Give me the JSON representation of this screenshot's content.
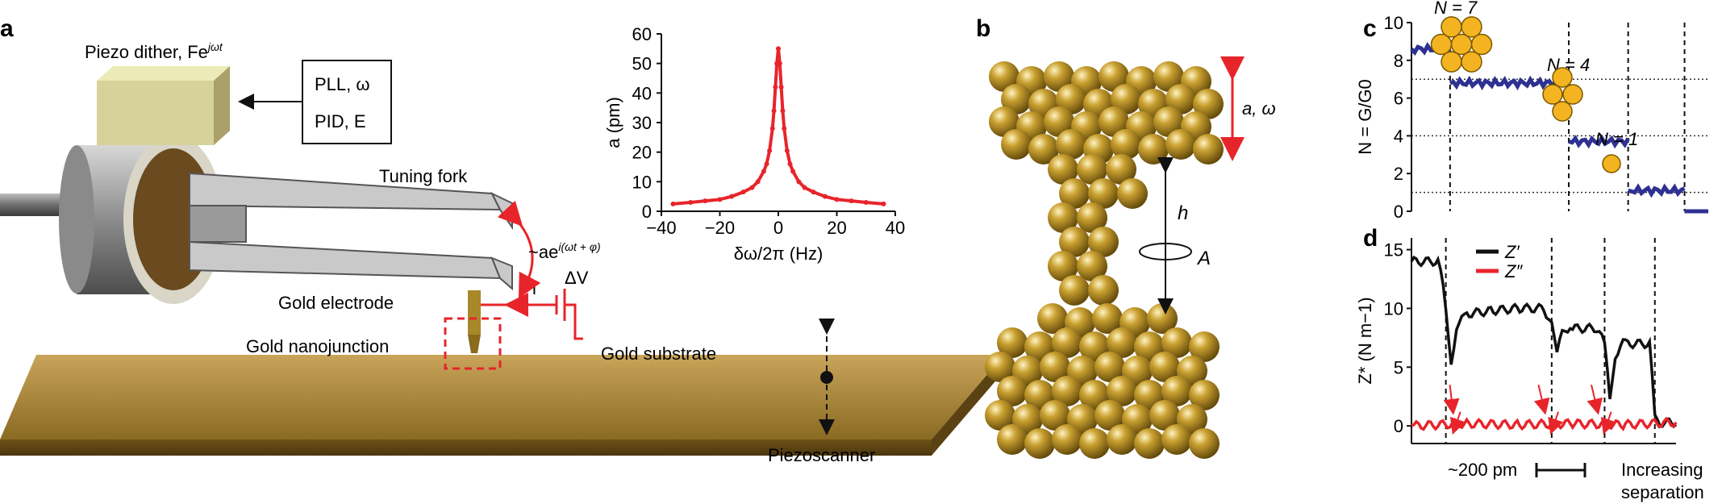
{
  "panels": {
    "a": "a",
    "b": "b",
    "c": "c",
    "d": "d"
  },
  "panel_a": {
    "dither_label": "Piezo dither, Fe",
    "dither_sup": "jωt",
    "box_line1": "PLL, ω",
    "box_line2": "PID, E",
    "tuning_fork": "Tuning fork",
    "oscillation": "~ae",
    "oscillation_sup": "i(ωt + φ)",
    "gold_electrode": "Gold electrode",
    "current": "i",
    "voltage": "ΔV",
    "gold_nanojunction": "Gold nanojunction",
    "gold_substrate": "Gold substrate",
    "piezoscanner": "Piezoscanner"
  },
  "panel_b": {
    "amp_label": "a, ω",
    "height_label": "h",
    "area_label": "A"
  },
  "panel_c": {
    "labels": {
      "n7": "N = 7",
      "n4": "N = 4",
      "n1": "N = 1"
    }
  },
  "panel_d": {
    "legend": [
      "Z′",
      "Z″"
    ],
    "scale_label": "~200 pm",
    "xlabel_line1": "Increasing",
    "xlabel_line2": "separation"
  },
  "colors": {
    "red": "#e8242b",
    "navy": "#2e3192",
    "gold": "#b08a2a",
    "black": "#111111"
  },
  "chart_data": [
    {
      "id": "inset-resonance",
      "type": "scatter",
      "xlabel": "δω/2π (Hz)",
      "ylabel": "a (pm)",
      "xlim": [
        -40,
        40
      ],
      "ylim": [
        0,
        60
      ],
      "xticks": [
        -40,
        -20,
        0,
        20,
        40
      ],
      "xtick_labels": [
        "−40",
        "−20",
        "0",
        "20",
        "40"
      ],
      "yticks": [
        0,
        10,
        20,
        30,
        40,
        50,
        60
      ],
      "series": [
        {
          "color": "#e8242b",
          "x": [
            -36,
            -30,
            -25,
            -20,
            -16,
            -12,
            -9,
            -7,
            -5,
            -4,
            -3,
            -2,
            -1.5,
            -1,
            -0.5,
            0,
            0.5,
            1,
            1.5,
            2,
            3,
            4,
            5,
            7,
            9,
            12,
            16,
            20,
            25,
            30,
            36
          ],
          "y": [
            2.5,
            3.0,
            3.5,
            4.0,
            5.0,
            6.5,
            8.0,
            10.0,
            13.5,
            16.0,
            20.5,
            28.0,
            34.0,
            42.0,
            50.0,
            55.0,
            50.0,
            42.0,
            34.0,
            28.0,
            20.5,
            16.0,
            13.5,
            10.0,
            8.0,
            6.5,
            5.0,
            4.0,
            3.5,
            3.0,
            2.5
          ]
        }
      ]
    },
    {
      "id": "panel-c-conductance",
      "type": "scatter",
      "ylabel": "N = G/G0",
      "ylim": [
        0,
        10
      ],
      "yticks": [
        0,
        2,
        4,
        6,
        8,
        10
      ],
      "xlim": [
        0,
        1
      ],
      "hlines": [
        1,
        4,
        7
      ],
      "vlines": [
        0.13,
        0.53,
        0.73,
        0.92
      ],
      "series": [
        {
          "color": "#2e3192",
          "segments": [
            {
              "x": [
                0.0,
                0.13
              ],
              "y": 8.6
            },
            {
              "x": [
                0.13,
                0.53
              ],
              "y": 6.8
            },
            {
              "x": [
                0.53,
                0.73
              ],
              "y": 3.7
            },
            {
              "x": [
                0.73,
                0.92
              ],
              "y": 1.1
            },
            {
              "x": [
                0.92,
                1.0
              ],
              "y": 0.0
            }
          ]
        }
      ]
    },
    {
      "id": "panel-d-stiffness",
      "type": "line",
      "ylabel": "Z* (N m−1)",
      "ylim": [
        -1.5,
        16
      ],
      "yticks": [
        0,
        5,
        10,
        15
      ],
      "xlim": [
        0,
        1
      ],
      "vlines": [
        0.13,
        0.53,
        0.73,
        0.92
      ],
      "series": [
        {
          "name": "Z′",
          "color": "#111111",
          "x": [
            0.0,
            0.1,
            0.12,
            0.13,
            0.15,
            0.17,
            0.2,
            0.3,
            0.4,
            0.5,
            0.53,
            0.55,
            0.57,
            0.6,
            0.7,
            0.73,
            0.75,
            0.77,
            0.8,
            0.9,
            0.92,
            0.94,
            1.0
          ],
          "y": [
            14,
            14,
            12,
            10,
            5.5,
            8,
            9.5,
            9.8,
            10,
            10,
            8.5,
            6,
            8.3,
            8.3,
            8.3,
            7,
            2.5,
            6,
            7,
            7,
            1,
            0.3,
            0.3
          ]
        },
        {
          "name": "Z″",
          "color": "#e8242b",
          "x": [
            0.0,
            0.2,
            0.4,
            0.6,
            0.8,
            1.0
          ],
          "y": [
            0,
            0.2,
            0.1,
            0.2,
            0.1,
            0.3
          ]
        }
      ]
    }
  ]
}
